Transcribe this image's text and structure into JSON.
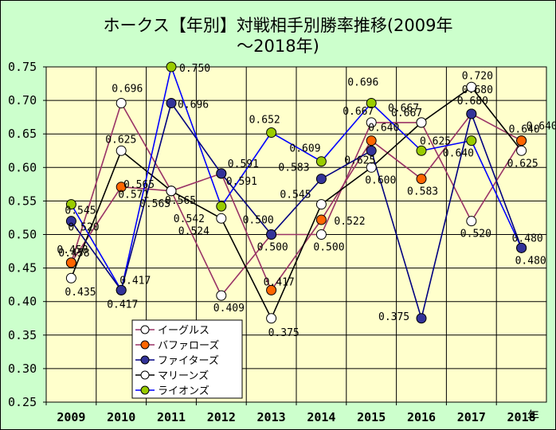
{
  "title_line1": "ホークス【年別】対戦相手別勝率推移(2009年",
  "title_line2": "～2018年)",
  "x_unit": "年",
  "colors": {
    "background": "#ccffcc",
    "plot_area": "#ffffcc",
    "grid": "#000000"
  },
  "chart_data": {
    "type": "line",
    "title": "ホークス【年別】対戦相手別勝率推移(2009年～2018年)",
    "xlabel": "年",
    "ylabel": "",
    "categories": [
      "2009",
      "2010",
      "2011",
      "2012",
      "2013",
      "2014",
      "2015",
      "2016",
      "2017",
      "2018"
    ],
    "ylim": [
      0.25,
      0.75
    ],
    "yticks": [
      "0.25",
      "0.30",
      "0.35",
      "0.40",
      "0.45",
      "0.50",
      "0.55",
      "0.60",
      "0.65",
      "0.70",
      "0.75"
    ],
    "grid": true,
    "legend_position": "bottom-left",
    "series": [
      {
        "name": "イーグルス",
        "line_color": "#993366",
        "marker_color": "#ffffff",
        "values": [
          0.458,
          0.696,
          0.565,
          0.409,
          0.5,
          0.5,
          0.667,
          0.667,
          0.52,
          0.64
        ],
        "labels": [
          "0.458",
          "0.696",
          "0.565",
          "0.409",
          "0.500",
          "0.500",
          "0.667",
          "0.667",
          "0.520",
          "0.640"
        ]
      },
      {
        "name": "バファローズ",
        "line_color": "#993366",
        "marker_color": "#ff6600",
        "values": [
          0.458,
          0.571,
          0.565,
          0.591,
          0.417,
          0.522,
          0.64,
          0.583,
          0.68,
          0.64
        ],
        "labels": [
          "0.458",
          "0.571",
          "0.565",
          "0.591",
          "0.417",
          "0.522",
          "0.640",
          "0.583",
          "0.680",
          "0.640"
        ]
      },
      {
        "name": "ファイターズ",
        "line_color": "#000080",
        "marker_color": "#333399",
        "values": [
          0.52,
          0.417,
          0.696,
          0.591,
          0.5,
          0.583,
          0.625,
          0.375,
          0.68,
          0.48
        ],
        "labels": [
          "0.520",
          "0.417",
          "0.696",
          "0.591",
          "0.500",
          "0.583",
          "0.625",
          "0.375",
          "0.680",
          "0.480"
        ]
      },
      {
        "name": "マリーンズ",
        "line_color": "#000000",
        "marker_color": "#ffffff",
        "values": [
          0.435,
          0.625,
          0.565,
          0.524,
          0.375,
          0.545,
          0.6,
          0.667,
          0.72,
          0.625
        ],
        "labels": [
          "0.435",
          "0.625",
          "0.565",
          "0.524",
          "0.375",
          "0.545",
          "0.600",
          "0.667",
          "0.720",
          "0.625"
        ]
      },
      {
        "name": "ライオンズ",
        "line_color": "#0000ff",
        "marker_color": "#99cc00",
        "values": [
          0.545,
          0.417,
          0.75,
          0.542,
          0.652,
          0.609,
          0.696,
          0.625,
          0.64,
          0.48
        ],
        "labels": [
          "0.545",
          "0.417",
          "0.750",
          "0.542",
          "0.652",
          "0.609",
          "0.696",
          "0.625",
          "0.640",
          "0.480"
        ]
      }
    ]
  }
}
